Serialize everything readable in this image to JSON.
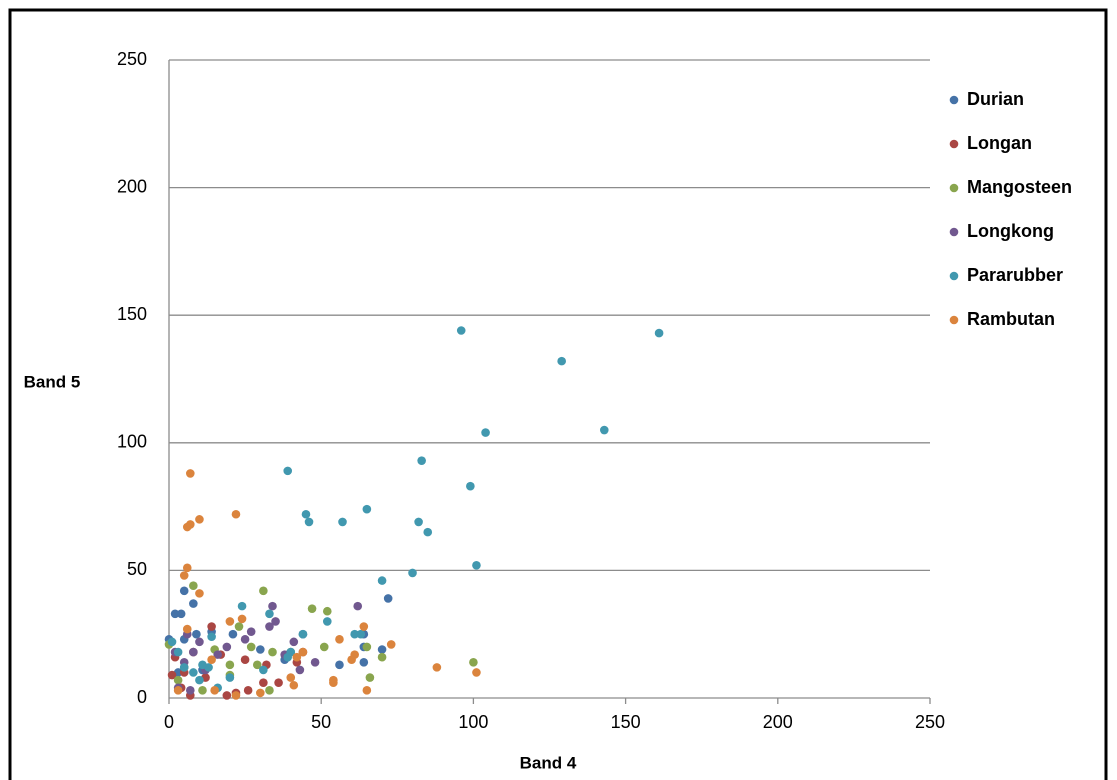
{
  "chart_data": {
    "type": "scatter",
    "x_label": "Band 4",
    "y_label": "Band 5",
    "xlim": [
      0,
      250
    ],
    "ylim": [
      0,
      250
    ],
    "xticks": [
      0,
      50,
      100,
      150,
      200,
      250
    ],
    "yticks": [
      0,
      50,
      100,
      150,
      200,
      250
    ],
    "grid": true,
    "legend": "right",
    "series": [
      {
        "name": "Durian",
        "color": "#4572a7",
        "x": [
          2,
          4,
          5,
          8,
          72,
          56,
          64,
          64,
          70,
          5,
          0,
          14,
          21,
          30,
          38,
          44,
          64,
          9,
          3,
          11
        ],
        "values": [
          33,
          33,
          42,
          37,
          39,
          13,
          25,
          14,
          19,
          23,
          23,
          26,
          25,
          19,
          15,
          25,
          20,
          25,
          10,
          11
        ]
      },
      {
        "name": "Longan",
        "color": "#aa4643",
        "x": [
          4,
          5,
          7,
          14,
          19,
          22,
          26,
          31,
          32,
          36,
          42,
          44,
          12,
          1,
          2,
          8,
          17,
          25
        ],
        "values": [
          4,
          10,
          1,
          28,
          1,
          2,
          3,
          6,
          13,
          6,
          14,
          18,
          8,
          9,
          16,
          18,
          17,
          15
        ]
      },
      {
        "name": "Mangosteen",
        "color": "#89a54e",
        "x": [
          8,
          31,
          47,
          52,
          70,
          100,
          65,
          66,
          33,
          11,
          20,
          20,
          23,
          27,
          34,
          51,
          15,
          5,
          0,
          3,
          29,
          40
        ],
        "values": [
          44,
          42,
          35,
          34,
          16,
          14,
          20,
          8,
          3,
          3,
          13,
          9,
          28,
          20,
          18,
          20,
          19,
          12,
          21,
          7,
          13,
          18
        ]
      },
      {
        "name": "Longkong",
        "color": "#71588f",
        "x": [
          34,
          35,
          62,
          33,
          41,
          43,
          48,
          19,
          25,
          2,
          5,
          8,
          10,
          12,
          27,
          38,
          3,
          7,
          16,
          6
        ],
        "values": [
          36,
          30,
          36,
          28,
          22,
          11,
          14,
          20,
          23,
          18,
          14,
          18,
          22,
          11,
          26,
          17,
          4,
          3,
          17,
          25
        ]
      },
      {
        "name": "Pararubber",
        "color": "#4198af",
        "x": [
          96,
          161,
          129,
          143,
          104,
          83,
          99,
          39,
          45,
          46,
          57,
          65,
          82,
          85,
          70,
          80,
          101,
          24,
          61,
          44,
          52,
          33,
          40,
          39,
          63,
          14,
          20,
          10,
          13,
          8,
          5,
          1,
          31,
          3,
          11,
          16
        ],
        "values": [
          144,
          143,
          132,
          105,
          104,
          93,
          83,
          89,
          72,
          69,
          69,
          74,
          69,
          65,
          46,
          49,
          52,
          36,
          25,
          25,
          30,
          33,
          18,
          16,
          25,
          24,
          8,
          7,
          12,
          10,
          12,
          22,
          11,
          18,
          13,
          4
        ]
      },
      {
        "name": "Rambutan",
        "color": "#db843d",
        "x": [
          7,
          22,
          10,
          7,
          6,
          6,
          5,
          10,
          6,
          14,
          20,
          24,
          30,
          22,
          42,
          44,
          54,
          54,
          60,
          61,
          64,
          65,
          73,
          88,
          101,
          56,
          3,
          40,
          41,
          15
        ],
        "values": [
          88,
          72,
          70,
          68,
          67,
          51,
          48,
          41,
          27,
          15,
          30,
          31,
          2,
          1,
          16,
          18,
          6,
          7,
          15,
          17,
          28,
          3,
          21,
          12,
          10,
          23,
          3,
          8,
          5,
          3
        ]
      }
    ]
  }
}
